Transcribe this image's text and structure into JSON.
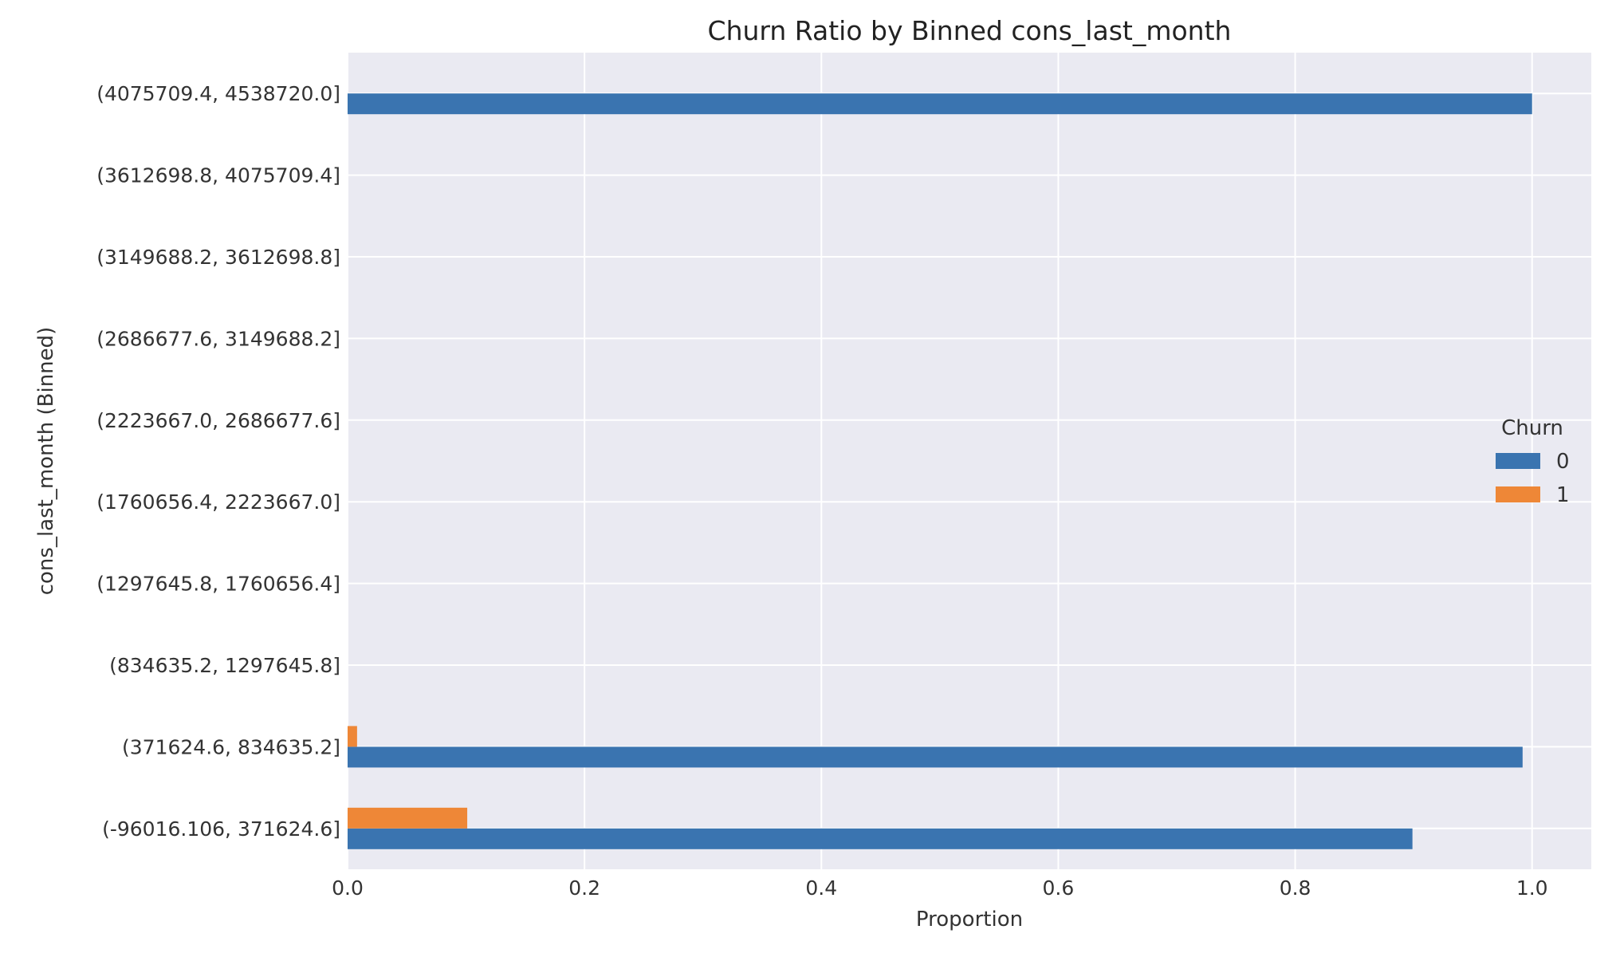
{
  "chart_data": {
    "type": "bar",
    "orientation": "horizontal",
    "title": "Churn Ratio by Binned cons_last_month",
    "xlabel": "Proportion",
    "ylabel": "cons_last_month (Binned)",
    "xlim": [
      0,
      1.05
    ],
    "xticks": [
      "0.0",
      "0.2",
      "0.4",
      "0.6",
      "0.8",
      "1.0"
    ],
    "grid": true,
    "categories": [
      "(-96016.106, 371624.6]",
      "(371624.6, 834635.2]",
      "(834635.2, 1297645.8]",
      "(1297645.8, 1760656.4]",
      "(1760656.4, 2223667.0]",
      "(2223667.0, 2686677.6]",
      "(2686677.6, 3149688.2]",
      "(3149688.2, 3612698.8]",
      "(3612698.8, 4075709.4]",
      "(4075709.4, 4538720.0]"
    ],
    "series": [
      {
        "name": "0",
        "color": "#3a74b0",
        "values": [
          0.899,
          0.992,
          0,
          0,
          0,
          0,
          0,
          0,
          0,
          1.0
        ]
      },
      {
        "name": "1",
        "color": "#ee8737",
        "values": [
          0.101,
          0.008,
          0,
          0,
          0,
          0,
          0,
          0,
          0,
          0
        ]
      }
    ],
    "legend": {
      "title": "Churn",
      "placement": "center-right"
    }
  }
}
